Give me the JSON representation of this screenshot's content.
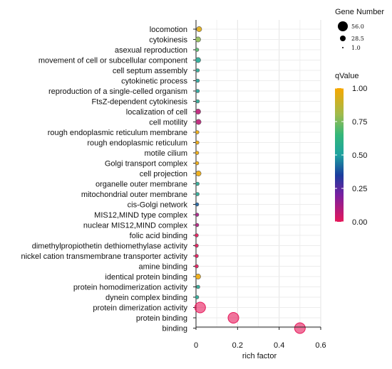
{
  "chart_data": {
    "type": "scatter",
    "xlabel": "rich factor",
    "xlim": [
      0,
      0.6
    ],
    "xticks": [
      "0",
      "0.2",
      "0.4",
      "0.6"
    ],
    "grid": true,
    "categories": [
      "locomotion",
      "cytokinesis",
      "asexual reproduction",
      "movement of cell or subcellular component",
      "cell septum assembly",
      "cytokinetic process",
      "reproduction of a single-celled organism",
      "FtsZ-dependent cytokinesis",
      "localization of cell",
      "cell motility",
      "rough endoplasmic reticulum membrane",
      "rough endoplasmic reticulum",
      "motile cilium",
      "Golgi transport complex",
      "cell projection",
      "organelle outer membrane",
      "mitochondrial outer membrane",
      "cis-Golgi network",
      "MIS12,MIND type complex",
      "nuclear MIS12,MIND complex",
      "folic acid binding",
      "dimethylpropiothetin dethiomethylase activity",
      "nickel cation transmembrane transporter activity",
      "amine binding",
      "identical protein binding",
      "protein homodimerization activity",
      "dynein complex binding",
      "protein dimerization activity",
      "protein binding",
      "binding"
    ],
    "rich_factor": [
      0.015,
      0.01,
      0.005,
      0.01,
      0.008,
      0.008,
      0.008,
      0.008,
      0.01,
      0.012,
      0.006,
      0.006,
      0.005,
      0.005,
      0.012,
      0.007,
      0.007,
      0.005,
      0.005,
      0.005,
      0.003,
      0.003,
      0.003,
      0.003,
      0.01,
      0.01,
      0.005,
      0.02,
      0.18,
      0.5
    ],
    "gene_number": [
      2,
      2,
      1,
      2,
      1,
      1,
      1,
      1,
      2,
      2,
      1,
      1,
      1,
      1,
      2,
      1,
      1,
      1,
      1,
      1,
      1,
      1,
      1,
      1,
      2,
      1,
      1,
      20,
      20,
      20
    ],
    "qvalue": [
      0.95,
      0.78,
      0.7,
      0.55,
      0.55,
      0.52,
      0.52,
      0.55,
      0.08,
      0.08,
      0.98,
      0.98,
      0.98,
      0.98,
      0.98,
      0.55,
      0.55,
      0.4,
      0.12,
      0.1,
      0.0,
      0.0,
      0.0,
      0.0,
      0.98,
      0.55,
      0.55,
      0.0,
      0.0,
      0.0
    ],
    "size_legend": {
      "title": "Gene Number",
      "values": [
        56.0,
        28.5,
        1.0
      ],
      "labels": [
        "56.0",
        "28.5",
        "1.0"
      ]
    },
    "color_legend": {
      "title": "qValue",
      "ticks": [
        "1.00",
        "0.75",
        "0.50",
        "0.25",
        "0.00"
      ],
      "tick_values": [
        1.0,
        0.75,
        0.5,
        0.25,
        0.0
      ],
      "range": [
        0,
        1
      ],
      "colors": [
        "#e6185a",
        "#7a1fa0",
        "#1a3d9e",
        "#1ea2a0",
        "#34b77a",
        "#9ebb4e",
        "#f7a700"
      ]
    }
  }
}
